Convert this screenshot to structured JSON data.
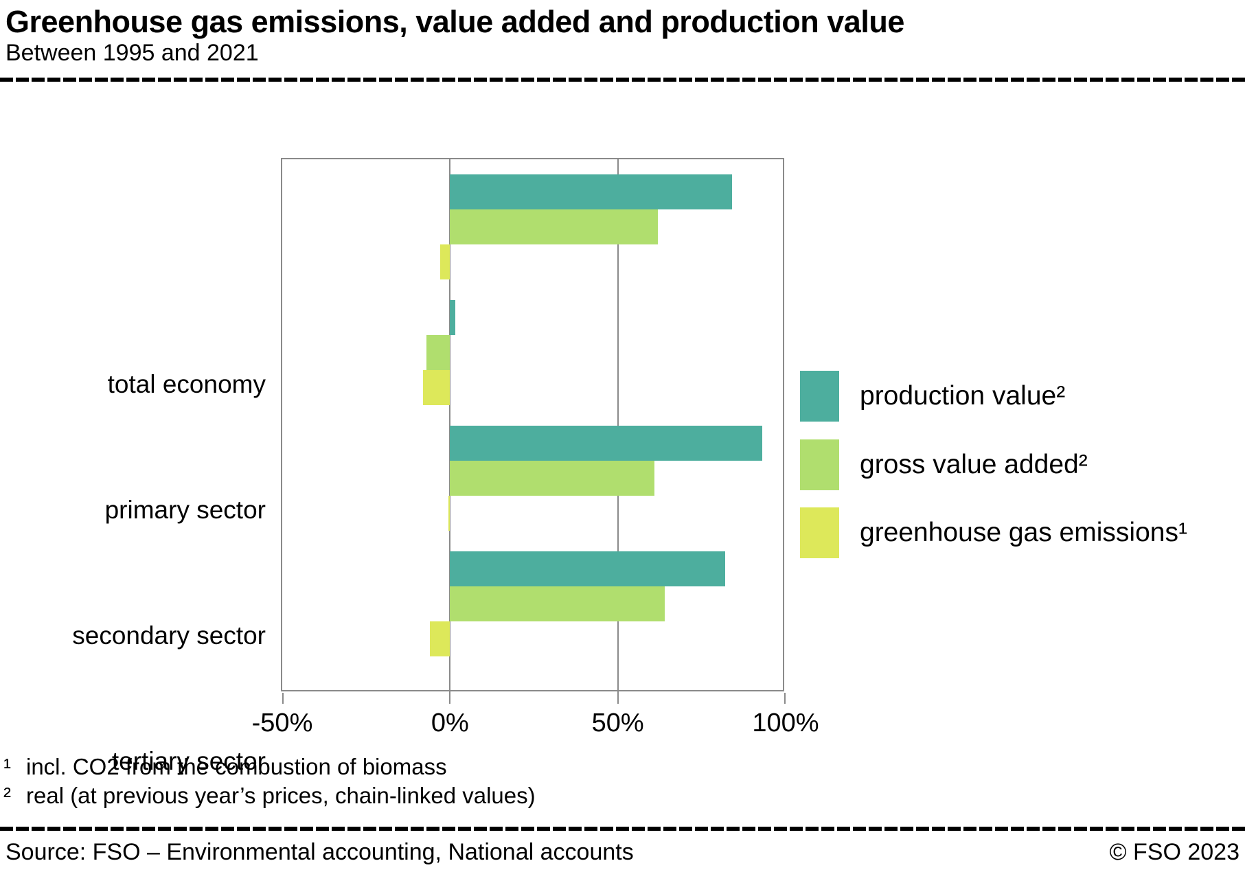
{
  "header": {
    "title": "Greenhouse gas emissions, value added and production value",
    "subtitle": "Between 1995 and 2021"
  },
  "chart_data": {
    "type": "bar",
    "orientation": "horizontal",
    "title": "Greenhouse gas emissions, value added and production value",
    "subtitle": "Between 1995 and 2021",
    "categories": [
      "total economy",
      "primary sector",
      "secondary sector",
      "tertiary sector"
    ],
    "series": [
      {
        "name": "production value²",
        "color": "#4dae9e",
        "values": [
          84,
          1.5,
          93,
          82
        ]
      },
      {
        "name": "gross value added²",
        "color": "#b0de6e",
        "values": [
          62,
          -7,
          61,
          64
        ]
      },
      {
        "name": "greenhouse gas emissions¹",
        "color": "#dde85a",
        "values": [
          -3,
          -8,
          -0.5,
          -6
        ]
      }
    ],
    "xlim": [
      -50,
      100
    ],
    "tick_values": [
      -50,
      0,
      50,
      100
    ],
    "xlabel_ticks": [
      "-50%",
      "0%",
      "50%",
      "100%"
    ],
    "unit": "%",
    "grid": true,
    "legend_position": "right"
  },
  "footnotes": [
    {
      "marker": "¹",
      "text": "incl. CO2 from the combustion of biomass"
    },
    {
      "marker": "²",
      "text": "real (at previous year’s prices, chain-linked values)"
    }
  ],
  "footer": {
    "source": "Source: FSO – Environmental accounting, National accounts",
    "copyright": "© FSO 2023"
  },
  "colors": {
    "production_value": "#4dae9e",
    "gross_value_added": "#b0de6e",
    "greenhouse_gas_emissions": "#dde85a",
    "frame_gray": "#8a8a8a",
    "text": "#000000"
  }
}
